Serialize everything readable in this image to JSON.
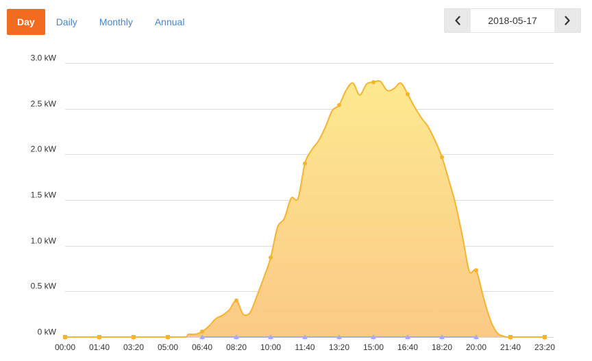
{
  "tabs": [
    {
      "label": "Day",
      "active": true
    },
    {
      "label": "Daily",
      "active": false
    },
    {
      "label": "Monthly",
      "active": false
    },
    {
      "label": "Annual",
      "active": false
    }
  ],
  "date_nav": {
    "date": "2018-05-17",
    "prev_icon": "chevron-left-icon",
    "next_icon": "chevron-right-icon"
  },
  "colors": {
    "accent": "#f26b21",
    "link": "#4a86c5",
    "series_line": "#f5b331",
    "area_top": "#fde98f",
    "area_bottom": "#fbc987",
    "marker_secondary": "#a9a9f2"
  },
  "chart_data": {
    "type": "area",
    "ylim": [
      0,
      3.0
    ],
    "y_ticks": [
      {
        "value": 0,
        "label": "0 kW"
      },
      {
        "value": 0.5,
        "label": "0.5 kW"
      },
      {
        "value": 1.0,
        "label": "1.0 kW"
      },
      {
        "value": 1.5,
        "label": "1.5 kW"
      },
      {
        "value": 2.0,
        "label": "2.0 kW"
      },
      {
        "value": 2.5,
        "label": "2.5 kW"
      },
      {
        "value": 3.0,
        "label": "3.0 kW"
      }
    ],
    "x_range_minutes": [
      0,
      1400
    ],
    "x_ticks": [
      "00:00",
      "01:40",
      "03:20",
      "05:00",
      "06:40",
      "08:20",
      "10:00",
      "11:40",
      "13:20",
      "15:00",
      "16:40",
      "18:20",
      "20:00",
      "21:40",
      "23:20"
    ],
    "grid": true,
    "series": [
      {
        "values": [
          [
            "00:00",
            0
          ],
          [
            "01:40",
            0
          ],
          [
            "03:20",
            0
          ],
          [
            "05:00",
            0
          ],
          [
            "05:50",
            0
          ],
          [
            "06:00",
            0.03
          ],
          [
            "06:20",
            0.03
          ],
          [
            "06:40",
            0.06
          ],
          [
            "07:00",
            0.12
          ],
          [
            "07:20",
            0.2
          ],
          [
            "07:40",
            0.24
          ],
          [
            "08:00",
            0.3
          ],
          [
            "08:20",
            0.4
          ],
          [
            "08:40",
            0.25
          ],
          [
            "09:00",
            0.27
          ],
          [
            "09:20",
            0.45
          ],
          [
            "09:40",
            0.65
          ],
          [
            "10:00",
            0.87
          ],
          [
            "10:20",
            1.2
          ],
          [
            "10:40",
            1.3
          ],
          [
            "11:00",
            1.52
          ],
          [
            "11:20",
            1.52
          ],
          [
            "11:40",
            1.9
          ],
          [
            "12:00",
            2.05
          ],
          [
            "12:20",
            2.15
          ],
          [
            "12:40",
            2.3
          ],
          [
            "13:00",
            2.48
          ],
          [
            "13:20",
            2.54
          ],
          [
            "13:40",
            2.7
          ],
          [
            "14:00",
            2.78
          ],
          [
            "14:20",
            2.65
          ],
          [
            "14:40",
            2.77
          ],
          [
            "15:00",
            2.79
          ],
          [
            "15:20",
            2.8
          ],
          [
            "15:40",
            2.7
          ],
          [
            "16:00",
            2.72
          ],
          [
            "16:20",
            2.78
          ],
          [
            "16:40",
            2.66
          ],
          [
            "17:00",
            2.52
          ],
          [
            "17:20",
            2.4
          ],
          [
            "17:40",
            2.3
          ],
          [
            "18:00",
            2.15
          ],
          [
            "18:20",
            1.97
          ],
          [
            "18:40",
            1.72
          ],
          [
            "19:00",
            1.45
          ],
          [
            "19:20",
            1.1
          ],
          [
            "19:40",
            0.72
          ],
          [
            "20:00",
            0.73
          ],
          [
            "20:20",
            0.45
          ],
          [
            "20:40",
            0.2
          ],
          [
            "21:00",
            0.05
          ],
          [
            "21:20",
            0.01
          ],
          [
            "21:40",
            0
          ],
          [
            "23:20",
            0
          ]
        ],
        "markers": [
          [
            "00:00",
            0
          ],
          [
            "01:40",
            0
          ],
          [
            "03:20",
            0
          ],
          [
            "05:00",
            0
          ],
          [
            "06:40",
            0.06
          ],
          [
            "08:20",
            0.4
          ],
          [
            "10:00",
            0.87
          ],
          [
            "11:40",
            1.9
          ],
          [
            "13:20",
            2.54
          ],
          [
            "15:00",
            2.79
          ],
          [
            "16:40",
            2.66
          ],
          [
            "18:20",
            1.97
          ],
          [
            "20:00",
            0.73
          ],
          [
            "21:40",
            0
          ],
          [
            "23:20",
            0
          ]
        ]
      },
      {
        "values": [
          [
            "06:40",
            0
          ],
          [
            "08:20",
            0
          ],
          [
            "10:00",
            0
          ],
          [
            "11:40",
            0
          ],
          [
            "13:20",
            0
          ],
          [
            "15:00",
            0
          ],
          [
            "16:40",
            0
          ],
          [
            "18:20",
            0
          ],
          [
            "20:00",
            0
          ]
        ]
      }
    ]
  }
}
